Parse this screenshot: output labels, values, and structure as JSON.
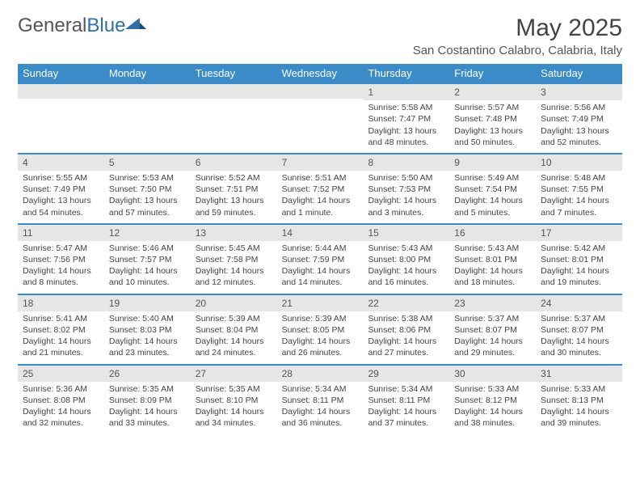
{
  "logo": {
    "text1": "General",
    "text2": "Blue"
  },
  "title": "May 2025",
  "location": "San Costantino Calabro, Calabria, Italy",
  "colors": {
    "header_bar": "#3b8bc8",
    "week_border": "#3b8bc8",
    "daynum_bg": "#e6e6e6",
    "text": "#444444"
  },
  "weekdays": [
    "Sunday",
    "Monday",
    "Tuesday",
    "Wednesday",
    "Thursday",
    "Friday",
    "Saturday"
  ],
  "weeks": [
    [
      {
        "n": "",
        "sr": "",
        "ss": "",
        "dl": ""
      },
      {
        "n": "",
        "sr": "",
        "ss": "",
        "dl": ""
      },
      {
        "n": "",
        "sr": "",
        "ss": "",
        "dl": ""
      },
      {
        "n": "",
        "sr": "",
        "ss": "",
        "dl": ""
      },
      {
        "n": "1",
        "sr": "Sunrise: 5:58 AM",
        "ss": "Sunset: 7:47 PM",
        "dl": "Daylight: 13 hours and 48 minutes."
      },
      {
        "n": "2",
        "sr": "Sunrise: 5:57 AM",
        "ss": "Sunset: 7:48 PM",
        "dl": "Daylight: 13 hours and 50 minutes."
      },
      {
        "n": "3",
        "sr": "Sunrise: 5:56 AM",
        "ss": "Sunset: 7:49 PM",
        "dl": "Daylight: 13 hours and 52 minutes."
      }
    ],
    [
      {
        "n": "4",
        "sr": "Sunrise: 5:55 AM",
        "ss": "Sunset: 7:49 PM",
        "dl": "Daylight: 13 hours and 54 minutes."
      },
      {
        "n": "5",
        "sr": "Sunrise: 5:53 AM",
        "ss": "Sunset: 7:50 PM",
        "dl": "Daylight: 13 hours and 57 minutes."
      },
      {
        "n": "6",
        "sr": "Sunrise: 5:52 AM",
        "ss": "Sunset: 7:51 PM",
        "dl": "Daylight: 13 hours and 59 minutes."
      },
      {
        "n": "7",
        "sr": "Sunrise: 5:51 AM",
        "ss": "Sunset: 7:52 PM",
        "dl": "Daylight: 14 hours and 1 minute."
      },
      {
        "n": "8",
        "sr": "Sunrise: 5:50 AM",
        "ss": "Sunset: 7:53 PM",
        "dl": "Daylight: 14 hours and 3 minutes."
      },
      {
        "n": "9",
        "sr": "Sunrise: 5:49 AM",
        "ss": "Sunset: 7:54 PM",
        "dl": "Daylight: 14 hours and 5 minutes."
      },
      {
        "n": "10",
        "sr": "Sunrise: 5:48 AM",
        "ss": "Sunset: 7:55 PM",
        "dl": "Daylight: 14 hours and 7 minutes."
      }
    ],
    [
      {
        "n": "11",
        "sr": "Sunrise: 5:47 AM",
        "ss": "Sunset: 7:56 PM",
        "dl": "Daylight: 14 hours and 8 minutes."
      },
      {
        "n": "12",
        "sr": "Sunrise: 5:46 AM",
        "ss": "Sunset: 7:57 PM",
        "dl": "Daylight: 14 hours and 10 minutes."
      },
      {
        "n": "13",
        "sr": "Sunrise: 5:45 AM",
        "ss": "Sunset: 7:58 PM",
        "dl": "Daylight: 14 hours and 12 minutes."
      },
      {
        "n": "14",
        "sr": "Sunrise: 5:44 AM",
        "ss": "Sunset: 7:59 PM",
        "dl": "Daylight: 14 hours and 14 minutes."
      },
      {
        "n": "15",
        "sr": "Sunrise: 5:43 AM",
        "ss": "Sunset: 8:00 PM",
        "dl": "Daylight: 14 hours and 16 minutes."
      },
      {
        "n": "16",
        "sr": "Sunrise: 5:43 AM",
        "ss": "Sunset: 8:01 PM",
        "dl": "Daylight: 14 hours and 18 minutes."
      },
      {
        "n": "17",
        "sr": "Sunrise: 5:42 AM",
        "ss": "Sunset: 8:01 PM",
        "dl": "Daylight: 14 hours and 19 minutes."
      }
    ],
    [
      {
        "n": "18",
        "sr": "Sunrise: 5:41 AM",
        "ss": "Sunset: 8:02 PM",
        "dl": "Daylight: 14 hours and 21 minutes."
      },
      {
        "n": "19",
        "sr": "Sunrise: 5:40 AM",
        "ss": "Sunset: 8:03 PM",
        "dl": "Daylight: 14 hours and 23 minutes."
      },
      {
        "n": "20",
        "sr": "Sunrise: 5:39 AM",
        "ss": "Sunset: 8:04 PM",
        "dl": "Daylight: 14 hours and 24 minutes."
      },
      {
        "n": "21",
        "sr": "Sunrise: 5:39 AM",
        "ss": "Sunset: 8:05 PM",
        "dl": "Daylight: 14 hours and 26 minutes."
      },
      {
        "n": "22",
        "sr": "Sunrise: 5:38 AM",
        "ss": "Sunset: 8:06 PM",
        "dl": "Daylight: 14 hours and 27 minutes."
      },
      {
        "n": "23",
        "sr": "Sunrise: 5:37 AM",
        "ss": "Sunset: 8:07 PM",
        "dl": "Daylight: 14 hours and 29 minutes."
      },
      {
        "n": "24",
        "sr": "Sunrise: 5:37 AM",
        "ss": "Sunset: 8:07 PM",
        "dl": "Daylight: 14 hours and 30 minutes."
      }
    ],
    [
      {
        "n": "25",
        "sr": "Sunrise: 5:36 AM",
        "ss": "Sunset: 8:08 PM",
        "dl": "Daylight: 14 hours and 32 minutes."
      },
      {
        "n": "26",
        "sr": "Sunrise: 5:35 AM",
        "ss": "Sunset: 8:09 PM",
        "dl": "Daylight: 14 hours and 33 minutes."
      },
      {
        "n": "27",
        "sr": "Sunrise: 5:35 AM",
        "ss": "Sunset: 8:10 PM",
        "dl": "Daylight: 14 hours and 34 minutes."
      },
      {
        "n": "28",
        "sr": "Sunrise: 5:34 AM",
        "ss": "Sunset: 8:11 PM",
        "dl": "Daylight: 14 hours and 36 minutes."
      },
      {
        "n": "29",
        "sr": "Sunrise: 5:34 AM",
        "ss": "Sunset: 8:11 PM",
        "dl": "Daylight: 14 hours and 37 minutes."
      },
      {
        "n": "30",
        "sr": "Sunrise: 5:33 AM",
        "ss": "Sunset: 8:12 PM",
        "dl": "Daylight: 14 hours and 38 minutes."
      },
      {
        "n": "31",
        "sr": "Sunrise: 5:33 AM",
        "ss": "Sunset: 8:13 PM",
        "dl": "Daylight: 14 hours and 39 minutes."
      }
    ]
  ]
}
